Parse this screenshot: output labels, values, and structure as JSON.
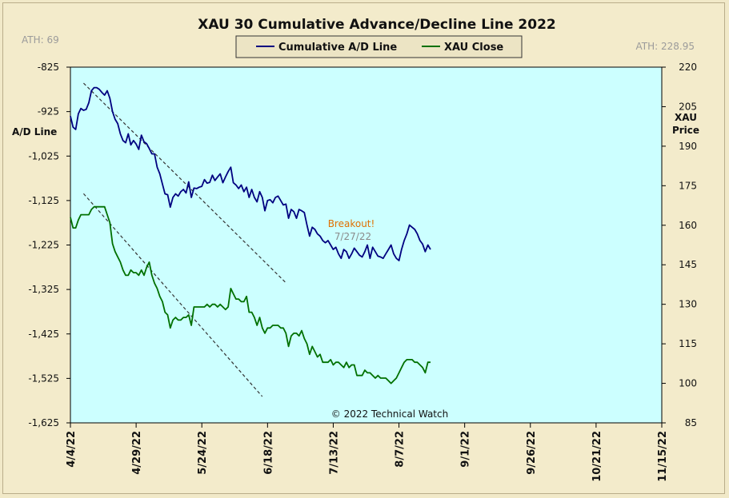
{
  "chart_data": {
    "type": "line",
    "title": "XAU 30 Cumulative Advance/Decline Line 2022",
    "y_left_label": "A/D Line",
    "y_right_label": "XAU Price",
    "ath_left": "ATH: 69",
    "ath_right": "ATH: 228.95",
    "credit": "© 2022 Technical Watch",
    "annotation": {
      "label": "Breakout!",
      "date": "7/27/22",
      "label_color": "#e07000",
      "date_color": "#8a8a8a"
    },
    "left_axis": {
      "min": -1625,
      "max": -825,
      "ticks": [
        "-825",
        "-925",
        "-1,025",
        "-1,125",
        "-1,225",
        "-1,325",
        "-1,425",
        "-1,525",
        "-1,625"
      ]
    },
    "right_axis": {
      "min": 85,
      "max": 220,
      "ticks": [
        "220",
        "205",
        "190",
        "175",
        "160",
        "145",
        "130",
        "115",
        "100",
        "85"
      ]
    },
    "x_ticks": [
      "4/4/22",
      "4/29/22",
      "5/24/22",
      "6/18/22",
      "7/13/22",
      "8/7/22",
      "9/1/22",
      "9/26/22",
      "10/21/22",
      "11/15/22"
    ],
    "x_day_span": 225,
    "background": "#ccffff",
    "series": [
      {
        "name": "Cumulative A/D Line",
        "axis": "left",
        "color": "#000080",
        "points": [
          [
            0,
            -935
          ],
          [
            1,
            -960
          ],
          [
            2,
            -965
          ],
          [
            3,
            -930
          ],
          [
            4,
            -918
          ],
          [
            5,
            -922
          ],
          [
            6,
            -920
          ],
          [
            7,
            -905
          ],
          [
            8,
            -878
          ],
          [
            9,
            -871
          ],
          [
            10,
            -871
          ],
          [
            11,
            -875
          ],
          [
            12,
            -882
          ],
          [
            13,
            -888
          ],
          [
            14,
            -878
          ],
          [
            15,
            -895
          ],
          [
            16,
            -925
          ],
          [
            17,
            -942
          ],
          [
            18,
            -952
          ],
          [
            19,
            -975
          ],
          [
            20,
            -990
          ],
          [
            21,
            -995
          ],
          [
            22,
            -975
          ],
          [
            23,
            -1000
          ],
          [
            24,
            -990
          ],
          [
            25,
            -998
          ],
          [
            26,
            -1010
          ],
          [
            27,
            -978
          ],
          [
            28,
            -993
          ],
          [
            29,
            -997
          ],
          [
            30,
            -1008
          ],
          [
            31,
            -1020
          ],
          [
            32,
            -1020
          ],
          [
            33,
            -1050
          ],
          [
            34,
            -1065
          ],
          [
            35,
            -1088
          ],
          [
            36,
            -1110
          ],
          [
            37,
            -1112
          ],
          [
            38,
            -1140
          ],
          [
            39,
            -1118
          ],
          [
            40,
            -1110
          ],
          [
            41,
            -1115
          ],
          [
            42,
            -1105
          ],
          [
            43,
            -1100
          ],
          [
            44,
            -1108
          ],
          [
            45,
            -1083
          ],
          [
            46,
            -1118
          ],
          [
            47,
            -1097
          ],
          [
            48,
            -1098
          ],
          [
            49,
            -1095
          ],
          [
            50,
            -1093
          ],
          [
            51,
            -1078
          ],
          [
            52,
            -1086
          ],
          [
            53,
            -1084
          ],
          [
            54,
            -1068
          ],
          [
            55,
            -1080
          ],
          [
            56,
            -1072
          ],
          [
            57,
            -1065
          ],
          [
            58,
            -1085
          ],
          [
            59,
            -1072
          ],
          [
            60,
            -1060
          ],
          [
            61,
            -1050
          ],
          [
            62,
            -1085
          ],
          [
            63,
            -1090
          ],
          [
            64,
            -1098
          ],
          [
            65,
            -1090
          ],
          [
            66,
            -1105
          ],
          [
            67,
            -1095
          ],
          [
            68,
            -1118
          ],
          [
            69,
            -1100
          ],
          [
            70,
            -1118
          ],
          [
            71,
            -1128
          ],
          [
            72,
            -1105
          ],
          [
            73,
            -1118
          ],
          [
            74,
            -1148
          ],
          [
            75,
            -1125
          ],
          [
            76,
            -1123
          ],
          [
            77,
            -1130
          ],
          [
            78,
            -1118
          ],
          [
            79,
            -1115
          ],
          [
            80,
            -1125
          ],
          [
            81,
            -1135
          ],
          [
            82,
            -1133
          ],
          [
            83,
            -1165
          ],
          [
            84,
            -1145
          ],
          [
            85,
            -1150
          ],
          [
            86,
            -1165
          ],
          [
            87,
            -1145
          ],
          [
            88,
            -1148
          ],
          [
            89,
            -1152
          ],
          [
            90,
            -1180
          ],
          [
            91,
            -1205
          ],
          [
            92,
            -1185
          ],
          [
            93,
            -1190
          ],
          [
            94,
            -1200
          ],
          [
            95,
            -1205
          ],
          [
            96,
            -1215
          ],
          [
            97,
            -1220
          ],
          [
            98,
            -1215
          ],
          [
            99,
            -1225
          ],
          [
            100,
            -1235
          ],
          [
            101,
            -1230
          ],
          [
            102,
            -1245
          ],
          [
            103,
            -1255
          ],
          [
            104,
            -1235
          ],
          [
            105,
            -1240
          ],
          [
            106,
            -1255
          ],
          [
            107,
            -1245
          ],
          [
            108,
            -1232
          ],
          [
            109,
            -1240
          ],
          [
            110,
            -1248
          ],
          [
            111,
            -1252
          ],
          [
            112,
            -1240
          ],
          [
            113,
            -1225
          ],
          [
            114,
            -1255
          ],
          [
            115,
            -1230
          ],
          [
            116,
            -1240
          ],
          [
            117,
            -1250
          ],
          [
            118,
            -1252
          ],
          [
            119,
            -1255
          ],
          [
            120,
            -1245
          ],
          [
            121,
            -1235
          ],
          [
            122,
            -1225
          ],
          [
            123,
            -1245
          ],
          [
            124,
            -1255
          ],
          [
            125,
            -1260
          ],
          [
            126,
            -1235
          ],
          [
            127,
            -1215
          ],
          [
            128,
            -1200
          ],
          [
            129,
            -1180
          ],
          [
            130,
            -1185
          ],
          [
            131,
            -1190
          ],
          [
            132,
            -1200
          ],
          [
            133,
            -1215
          ],
          [
            134,
            -1223
          ],
          [
            135,
            -1240
          ],
          [
            136,
            -1225
          ],
          [
            137,
            -1235
          ]
        ]
      },
      {
        "name": "XAU Close",
        "axis": "right",
        "color": "#007000",
        "points": [
          [
            0,
            163
          ],
          [
            1,
            159
          ],
          [
            2,
            159
          ],
          [
            3,
            162
          ],
          [
            4,
            164
          ],
          [
            5,
            164
          ],
          [
            6,
            164
          ],
          [
            7,
            164
          ],
          [
            8,
            166
          ],
          [
            9,
            167
          ],
          [
            10,
            167
          ],
          [
            11,
            167
          ],
          [
            12,
            167
          ],
          [
            13,
            167
          ],
          [
            14,
            164
          ],
          [
            15,
            161
          ],
          [
            16,
            153
          ],
          [
            17,
            150
          ],
          [
            18,
            148
          ],
          [
            19,
            146
          ],
          [
            20,
            143
          ],
          [
            21,
            141
          ],
          [
            22,
            141
          ],
          [
            23,
            143
          ],
          [
            24,
            142
          ],
          [
            25,
            142
          ],
          [
            26,
            141
          ],
          [
            27,
            143
          ],
          [
            28,
            141
          ],
          [
            29,
            144
          ],
          [
            30,
            146
          ],
          [
            31,
            141
          ],
          [
            32,
            138
          ],
          [
            33,
            136
          ],
          [
            34,
            133
          ],
          [
            35,
            131
          ],
          [
            36,
            127
          ],
          [
            37,
            126
          ],
          [
            38,
            121
          ],
          [
            39,
            124
          ],
          [
            40,
            125
          ],
          [
            41,
            124
          ],
          [
            42,
            124
          ],
          [
            43,
            125
          ],
          [
            44,
            125
          ],
          [
            45,
            126
          ],
          [
            46,
            122
          ],
          [
            47,
            129
          ],
          [
            48,
            129
          ],
          [
            49,
            129
          ],
          [
            50,
            129
          ],
          [
            51,
            129
          ],
          [
            52,
            130
          ],
          [
            53,
            129
          ],
          [
            54,
            130
          ],
          [
            55,
            130
          ],
          [
            56,
            129
          ],
          [
            57,
            130
          ],
          [
            58,
            129
          ],
          [
            59,
            128
          ],
          [
            60,
            129
          ],
          [
            61,
            136
          ],
          [
            62,
            134
          ],
          [
            63,
            132
          ],
          [
            64,
            132
          ],
          [
            65,
            131
          ],
          [
            66,
            131
          ],
          [
            67,
            133
          ],
          [
            68,
            127
          ],
          [
            69,
            127
          ],
          [
            70,
            125
          ],
          [
            71,
            122
          ],
          [
            72,
            125
          ],
          [
            73,
            121
          ],
          [
            74,
            119
          ],
          [
            75,
            121
          ],
          [
            76,
            121
          ],
          [
            77,
            122
          ],
          [
            78,
            122
          ],
          [
            79,
            122
          ],
          [
            80,
            121
          ],
          [
            81,
            121
          ],
          [
            82,
            119
          ],
          [
            83,
            114
          ],
          [
            84,
            118
          ],
          [
            85,
            119
          ],
          [
            86,
            119
          ],
          [
            87,
            118
          ],
          [
            88,
            120
          ],
          [
            89,
            117
          ],
          [
            90,
            115
          ],
          [
            91,
            111
          ],
          [
            92,
            114
          ],
          [
            93,
            112
          ],
          [
            94,
            110
          ],
          [
            95,
            111
          ],
          [
            96,
            108
          ],
          [
            97,
            108
          ],
          [
            98,
            108
          ],
          [
            99,
            109
          ],
          [
            100,
            107
          ],
          [
            101,
            108
          ],
          [
            102,
            108
          ],
          [
            103,
            107
          ],
          [
            104,
            106
          ],
          [
            105,
            108
          ],
          [
            106,
            106
          ],
          [
            107,
            107
          ],
          [
            108,
            107
          ],
          [
            109,
            103
          ],
          [
            110,
            103
          ],
          [
            111,
            103
          ],
          [
            112,
            105
          ],
          [
            113,
            104
          ],
          [
            114,
            104
          ],
          [
            115,
            103
          ],
          [
            116,
            102
          ],
          [
            117,
            103
          ],
          [
            118,
            102
          ],
          [
            119,
            102
          ],
          [
            120,
            102
          ],
          [
            121,
            101
          ],
          [
            122,
            100
          ],
          [
            123,
            101
          ],
          [
            124,
            102
          ],
          [
            125,
            104
          ],
          [
            126,
            106
          ],
          [
            127,
            108
          ],
          [
            128,
            109
          ],
          [
            129,
            109
          ],
          [
            130,
            109
          ],
          [
            131,
            108
          ],
          [
            132,
            108
          ],
          [
            133,
            107
          ],
          [
            134,
            106
          ],
          [
            135,
            104
          ],
          [
            136,
            108
          ],
          [
            137,
            108
          ]
        ]
      }
    ],
    "trendlines": [
      {
        "axis": "left",
        "x1": 5,
        "y1": -861,
        "x2": 82,
        "y2": -1310,
        "color": "#333333",
        "dashed": true
      },
      {
        "axis": "right",
        "x1": 5,
        "y1": 172,
        "x2": 73,
        "y2": 95,
        "color": "#333333",
        "dashed": true
      }
    ],
    "legend": {
      "placement": "top-center"
    }
  }
}
